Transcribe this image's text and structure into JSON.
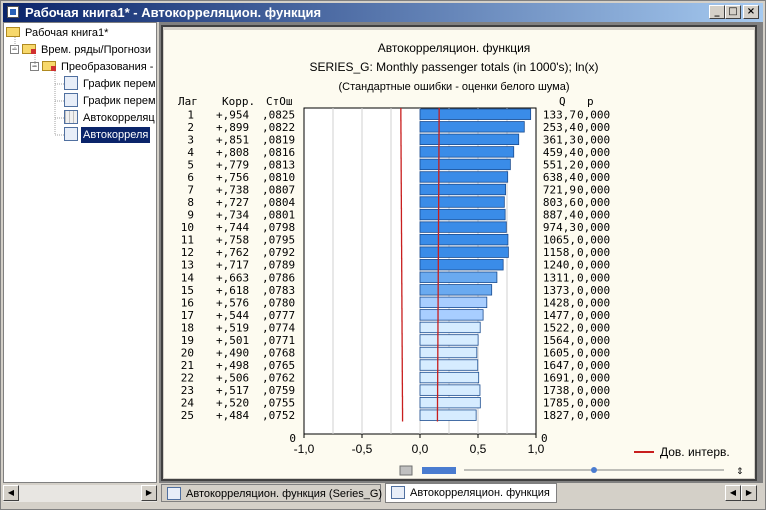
{
  "window": {
    "title": "Рабочая книга1* - Автокорреляцион. функция",
    "buttons": {
      "minimize": "_",
      "maximize": "□",
      "close": "×"
    }
  },
  "tree": {
    "items": [
      {
        "label": "Рабочая книга1*",
        "icon": "open-folder-icon"
      },
      {
        "label": "Врем. ряды/Прогнози",
        "icon": "folder-red-arrow-icon",
        "expander": "−"
      },
      {
        "label": "Преобразования -",
        "icon": "folder-red-arrow-icon",
        "expander": "−"
      },
      {
        "label": "График перем",
        "icon": "chart-doc-icon"
      },
      {
        "label": "График перем",
        "icon": "chart-doc-icon"
      },
      {
        "label": "Автокорреляц",
        "icon": "spreadsheet-icon"
      },
      {
        "label": "Автокорреля",
        "icon": "chart-doc-icon",
        "selected": true
      }
    ]
  },
  "tabs": [
    {
      "label": "Автокорреляцион. функция (Series_G)",
      "active": false
    },
    {
      "label": "Автокорреляцион. функция",
      "active": true
    }
  ],
  "colors": {
    "bar_fill": "#3a8ce8",
    "bar_light": "#d6ecff",
    "conf_line": "#c81e1e",
    "plot_bg": "#ffffff",
    "panel_bg": "#fdfbf0"
  },
  "chart_data": {
    "type": "bar",
    "orientation": "horizontal",
    "title": "Автокорреляцион. функция",
    "subtitle": "SERIES_G: Monthly passenger totals (in 1000's); ln(x)",
    "subtitle2": "(Стандартные ошибки - оценки белого шума)",
    "col_headers": {
      "lag": "Лаг",
      "corr": "Корр.",
      "se": "СтОш",
      "q": "Q",
      "p": "p"
    },
    "lags": [
      "1",
      "2",
      "3",
      "4",
      "5",
      "6",
      "7",
      "8",
      "9",
      "10",
      "11",
      "12",
      "13",
      "14",
      "15",
      "16",
      "17",
      "18",
      "19",
      "20",
      "21",
      "22",
      "23",
      "24",
      "25"
    ],
    "corr_text": [
      "+,954",
      "+,899",
      "+,851",
      "+,808",
      "+,779",
      "+,756",
      "+,738",
      "+,727",
      "+,734",
      "+,744",
      "+,758",
      "+,762",
      "+,717",
      "+,663",
      "+,618",
      "+,576",
      "+,544",
      "+,519",
      "+,501",
      "+,490",
      "+,498",
      "+,506",
      "+,517",
      "+,520",
      "+,484"
    ],
    "se_text": [
      ",0825",
      ",0822",
      ",0819",
      ",0816",
      ",0813",
      ",0810",
      ",0807",
      ",0804",
      ",0801",
      ",0798",
      ",0795",
      ",0792",
      ",0789",
      ",0786",
      ",0783",
      ",0780",
      ",0777",
      ",0774",
      ",0771",
      ",0768",
      ",0765",
      ",0762",
      ",0759",
      ",0755",
      ",0752"
    ],
    "q_text": [
      "133,7",
      "253,4",
      "361,3",
      "459,4",
      "551,2",
      "638,4",
      "721,9",
      "803,6",
      "887,4",
      "974,3",
      "1065,",
      "1158,",
      "1240,",
      "1311,",
      "1373,",
      "1428,",
      "1477,",
      "1522,",
      "1564,",
      "1605,",
      "1647,",
      "1691,",
      "1738,",
      "1785,",
      "1827,"
    ],
    "p_text": [
      "0,000",
      "0,000",
      "0,000",
      "0,000",
      "0,000",
      "0,000",
      "0,000",
      "0,000",
      "0,000",
      "0,000",
      "0,000",
      "0,000",
      "0,000",
      "0,000",
      "0,000",
      "0,000",
      "0,000",
      "0,000",
      "0,000",
      "0,000",
      "0,000",
      "0,000",
      "0,000",
      "0,000",
      "0,000"
    ],
    "values": [
      0.954,
      0.899,
      0.851,
      0.808,
      0.779,
      0.756,
      0.738,
      0.727,
      0.734,
      0.744,
      0.758,
      0.762,
      0.717,
      0.663,
      0.618,
      0.576,
      0.544,
      0.519,
      0.501,
      0.49,
      0.498,
      0.506,
      0.517,
      0.52,
      0.484
    ],
    "std_err": [
      0.0825,
      0.0822,
      0.0819,
      0.0816,
      0.0813,
      0.081,
      0.0807,
      0.0804,
      0.0801,
      0.0798,
      0.0795,
      0.0792,
      0.0789,
      0.0786,
      0.0783,
      0.078,
      0.0777,
      0.0774,
      0.0771,
      0.0768,
      0.0765,
      0.0762,
      0.0759,
      0.0755,
      0.0752
    ],
    "bottom_left_label": "0",
    "bottom_right_label": "0",
    "xlim": [
      -1.0,
      1.0
    ],
    "xticks": [
      "-1,0",
      "-0,5",
      "0,0",
      "0,5",
      "1,0"
    ],
    "xtick_values": [
      -1.0,
      -0.5,
      0.0,
      0.5,
      1.0
    ],
    "legend": "Дов. интерв.",
    "legend_position": "bottom-right",
    "grid": true
  }
}
